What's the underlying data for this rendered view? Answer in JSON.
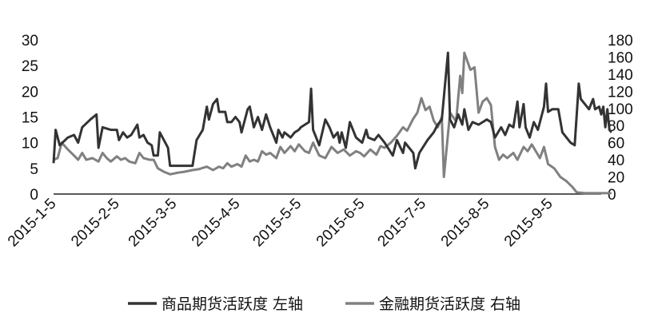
{
  "chart_data": {
    "type": "line",
    "title": "",
    "xlabel": "",
    "ylabel": "",
    "x_tick_labels": [
      "2015-1-5",
      "2015-2-5",
      "2015-3-5",
      "2015-4-5",
      "2015-5-5",
      "2015-6-5",
      "2015-7-5",
      "2015-8-5",
      "2015-9-5"
    ],
    "x_range": [
      "2015-01-05",
      "2015-09-30"
    ],
    "y_left": {
      "range": [
        0,
        30
      ],
      "ticks": [
        "0",
        "5",
        "10",
        "15",
        "20",
        "25",
        "30"
      ]
    },
    "y_right": {
      "range": [
        0,
        180
      ],
      "ticks": [
        "0",
        "20",
        "40",
        "60",
        "80",
        "100",
        "120",
        "140",
        "160",
        "180"
      ]
    },
    "grid": false,
    "legend_position": "bottom",
    "series": [
      {
        "name": "商品期货活跃度 左轴",
        "axis": "left",
        "color": "#333333",
        "points": [
          [
            "2015-01-05",
            6.0
          ],
          [
            "2015-01-06",
            12.5
          ],
          [
            "2015-01-08",
            9.5
          ],
          [
            "2015-01-12",
            11.0
          ],
          [
            "2015-01-15",
            11.5
          ],
          [
            "2015-01-17",
            10.0
          ],
          [
            "2015-01-19",
            13.0
          ],
          [
            "2015-01-23",
            14.5
          ],
          [
            "2015-01-26",
            15.5
          ],
          [
            "2015-01-27",
            9.0
          ],
          [
            "2015-01-29",
            13.0
          ],
          [
            "2015-02-02",
            12.5
          ],
          [
            "2015-02-05",
            12.5
          ],
          [
            "2015-02-06",
            10.5
          ],
          [
            "2015-02-08",
            12.0
          ],
          [
            "2015-02-10",
            11.0
          ],
          [
            "2015-02-12",
            11.5
          ],
          [
            "2015-02-15",
            13.5
          ],
          [
            "2015-02-16",
            11.0
          ],
          [
            "2015-02-18",
            11.5
          ],
          [
            "2015-02-20",
            10.0
          ],
          [
            "2015-02-22",
            9.5
          ],
          [
            "2015-02-23",
            7.5
          ],
          [
            "2015-02-25",
            7.5
          ],
          [
            "2015-02-26",
            12.0
          ],
          [
            "2015-02-28",
            10.5
          ],
          [
            "2015-03-02",
            9.0
          ],
          [
            "2015-03-03",
            5.5
          ],
          [
            "2015-03-05",
            5.5
          ],
          [
            "2015-03-10",
            5.5
          ],
          [
            "2015-03-14",
            5.5
          ],
          [
            "2015-03-16",
            10.5
          ],
          [
            "2015-03-19",
            12.5
          ],
          [
            "2015-03-21",
            17.0
          ],
          [
            "2015-03-22",
            14.5
          ],
          [
            "2015-03-24",
            17.5
          ],
          [
            "2015-03-26",
            18.5
          ],
          [
            "2015-03-27",
            16.0
          ],
          [
            "2015-03-30",
            16.0
          ],
          [
            "2015-03-31",
            14.0
          ],
          [
            "2015-04-02",
            14.0
          ],
          [
            "2015-04-04",
            15.0
          ],
          [
            "2015-04-06",
            14.0
          ],
          [
            "2015-04-07",
            12.0
          ],
          [
            "2015-04-10",
            16.5
          ],
          [
            "2015-04-11",
            17.0
          ],
          [
            "2015-04-13",
            13.0
          ],
          [
            "2015-04-15",
            15.0
          ],
          [
            "2015-04-17",
            12.5
          ],
          [
            "2015-04-19",
            15.5
          ],
          [
            "2015-04-21",
            13.0
          ],
          [
            "2015-04-24",
            10.0
          ],
          [
            "2015-04-25",
            12.5
          ],
          [
            "2015-04-27",
            11.0
          ],
          [
            "2015-04-28",
            12.0
          ],
          [
            "2015-05-01",
            11.0
          ],
          [
            "2015-05-03",
            12.0
          ],
          [
            "2015-05-05",
            12.5
          ],
          [
            "2015-05-06",
            13.0
          ],
          [
            "2015-05-10",
            14.0
          ],
          [
            "2015-05-11",
            20.5
          ],
          [
            "2015-05-12",
            12.5
          ],
          [
            "2015-05-15",
            9.5
          ],
          [
            "2015-05-18",
            14.5
          ],
          [
            "2015-05-20",
            13.0
          ],
          [
            "2015-05-22",
            11.0
          ],
          [
            "2015-05-24",
            12.0
          ],
          [
            "2015-05-25",
            10.0
          ],
          [
            "2015-05-26",
            12.0
          ],
          [
            "2015-05-28",
            9.0
          ],
          [
            "2015-05-30",
            14.0
          ],
          [
            "2015-06-02",
            11.0
          ],
          [
            "2015-06-05",
            10.0
          ],
          [
            "2015-06-07",
            12.5
          ],
          [
            "2015-06-08",
            11.0
          ],
          [
            "2015-06-11",
            10.5
          ],
          [
            "2015-06-13",
            11.5
          ],
          [
            "2015-06-16",
            10.0
          ],
          [
            "2015-06-20",
            7.5
          ],
          [
            "2015-06-22",
            10.5
          ],
          [
            "2015-06-25",
            8.0
          ],
          [
            "2015-06-26",
            10.0
          ],
          [
            "2015-06-30",
            8.0
          ],
          [
            "2015-07-01",
            5.0
          ],
          [
            "2015-07-03",
            8.0
          ],
          [
            "2015-07-07",
            10.5
          ],
          [
            "2015-07-10",
            12.0
          ],
          [
            "2015-07-12",
            13.5
          ],
          [
            "2015-07-14",
            14.5
          ],
          [
            "2015-07-17",
            27.5
          ],
          [
            "2015-07-18",
            14.5
          ],
          [
            "2015-07-20",
            13.0
          ],
          [
            "2015-07-22",
            15.5
          ],
          [
            "2015-07-24",
            13.5
          ],
          [
            "2015-07-25",
            16.5
          ],
          [
            "2015-07-27",
            12.5
          ],
          [
            "2015-07-29",
            14.0
          ],
          [
            "2015-08-01",
            13.5
          ],
          [
            "2015-08-03",
            14.0
          ],
          [
            "2015-08-05",
            14.5
          ],
          [
            "2015-08-07",
            14.0
          ],
          [
            "2015-08-09",
            11.0
          ],
          [
            "2015-08-12",
            13.0
          ],
          [
            "2015-08-14",
            11.5
          ],
          [
            "2015-08-16",
            13.5
          ],
          [
            "2015-08-18",
            13.0
          ],
          [
            "2015-08-20",
            18.0
          ],
          [
            "2015-08-21",
            13.0
          ],
          [
            "2015-08-23",
            17.5
          ],
          [
            "2015-08-24",
            13.0
          ],
          [
            "2015-08-26",
            11.0
          ],
          [
            "2015-08-28",
            14.0
          ],
          [
            "2015-08-30",
            12.5
          ],
          [
            "2015-09-02",
            17.0
          ],
          [
            "2015-09-03",
            21.5
          ],
          [
            "2015-09-04",
            16.0
          ],
          [
            "2015-09-06",
            16.5
          ],
          [
            "2015-09-09",
            16.5
          ],
          [
            "2015-09-11",
            12.0
          ],
          [
            "2015-09-15",
            10.0
          ],
          [
            "2015-09-17",
            9.5
          ],
          [
            "2015-09-19",
            21.5
          ],
          [
            "2015-09-20",
            18.5
          ],
          [
            "2015-09-22",
            17.5
          ],
          [
            "2015-09-24",
            16.5
          ],
          [
            "2015-09-26",
            18.5
          ],
          [
            "2015-09-27",
            16.5
          ],
          [
            "2015-09-29",
            17.0
          ],
          [
            "2015-09-30",
            15.5
          ],
          [
            "2015-10-01",
            17.0
          ],
          [
            "2015-10-02",
            13.0
          ],
          [
            "2015-10-03",
            16.5
          ],
          [
            "2015-10-04",
            12.5
          ],
          [
            "2015-10-05",
            12.0
          ]
        ]
      },
      {
        "name": "金融期货活跃度 右轴",
        "axis": "right",
        "color": "#808080",
        "points": [
          [
            "2015-01-05",
            40
          ],
          [
            "2015-01-07",
            42
          ],
          [
            "2015-01-09",
            60
          ],
          [
            "2015-01-12",
            52
          ],
          [
            "2015-01-15",
            45
          ],
          [
            "2015-01-17",
            40
          ],
          [
            "2015-01-19",
            48
          ],
          [
            "2015-01-21",
            40
          ],
          [
            "2015-01-24",
            42
          ],
          [
            "2015-01-27",
            38
          ],
          [
            "2015-01-29",
            48
          ],
          [
            "2015-01-31",
            42
          ],
          [
            "2015-02-02",
            38
          ],
          [
            "2015-02-05",
            44
          ],
          [
            "2015-02-07",
            40
          ],
          [
            "2015-02-09",
            42
          ],
          [
            "2015-02-11",
            38
          ],
          [
            "2015-02-14",
            36
          ],
          [
            "2015-02-16",
            48
          ],
          [
            "2015-02-18",
            42
          ],
          [
            "2015-02-21",
            40
          ],
          [
            "2015-02-23",
            40
          ],
          [
            "2015-02-25",
            30
          ],
          [
            "2015-02-28",
            26
          ],
          [
            "2015-03-03",
            23
          ],
          [
            "2015-03-07",
            25
          ],
          [
            "2015-03-10",
            26
          ],
          [
            "2015-03-14",
            28
          ],
          [
            "2015-03-17",
            29
          ],
          [
            "2015-03-21",
            32
          ],
          [
            "2015-03-24",
            28
          ],
          [
            "2015-03-27",
            32
          ],
          [
            "2015-03-29",
            30
          ],
          [
            "2015-03-31",
            36
          ],
          [
            "2015-04-02",
            32
          ],
          [
            "2015-04-05",
            35
          ],
          [
            "2015-04-07",
            32
          ],
          [
            "2015-04-09",
            45
          ],
          [
            "2015-04-11",
            38
          ],
          [
            "2015-04-13",
            40
          ],
          [
            "2015-04-15",
            38
          ],
          [
            "2015-04-17",
            50
          ],
          [
            "2015-04-19",
            46
          ],
          [
            "2015-04-21",
            48
          ],
          [
            "2015-04-24",
            42
          ],
          [
            "2015-04-26",
            55
          ],
          [
            "2015-04-28",
            48
          ],
          [
            "2015-05-01",
            56
          ],
          [
            "2015-05-03",
            50
          ],
          [
            "2015-05-05",
            58
          ],
          [
            "2015-05-08",
            50
          ],
          [
            "2015-05-10",
            48
          ],
          [
            "2015-05-12",
            60
          ],
          [
            "2015-05-15",
            45
          ],
          [
            "2015-05-18",
            42
          ],
          [
            "2015-05-21",
            55
          ],
          [
            "2015-05-24",
            48
          ],
          [
            "2015-05-27",
            52
          ],
          [
            "2015-05-30",
            45
          ],
          [
            "2015-06-02",
            50
          ],
          [
            "2015-06-04",
            48
          ],
          [
            "2015-06-06",
            44
          ],
          [
            "2015-06-09",
            52
          ],
          [
            "2015-06-12",
            46
          ],
          [
            "2015-06-14",
            56
          ],
          [
            "2015-06-16",
            54
          ],
          [
            "2015-06-19",
            60
          ],
          [
            "2015-06-22",
            68
          ],
          [
            "2015-06-25",
            78
          ],
          [
            "2015-06-27",
            74
          ],
          [
            "2015-06-30",
            88
          ],
          [
            "2015-07-02",
            95
          ],
          [
            "2015-07-04",
            112
          ],
          [
            "2015-07-06",
            98
          ],
          [
            "2015-07-08",
            102
          ],
          [
            "2015-07-10",
            86
          ],
          [
            "2015-07-12",
            78
          ],
          [
            "2015-07-14",
            90
          ],
          [
            "2015-07-15",
            20
          ],
          [
            "2015-07-18",
            95
          ],
          [
            "2015-07-21",
            85
          ],
          [
            "2015-07-23",
            138
          ],
          [
            "2015-07-24",
            118
          ],
          [
            "2015-07-25",
            165
          ],
          [
            "2015-07-28",
            145
          ],
          [
            "2015-07-30",
            148
          ],
          [
            "2015-08-01",
            95
          ],
          [
            "2015-08-03",
            108
          ],
          [
            "2015-08-05",
            112
          ],
          [
            "2015-08-07",
            104
          ],
          [
            "2015-08-09",
            55
          ],
          [
            "2015-08-11",
            40
          ],
          [
            "2015-08-13",
            46
          ],
          [
            "2015-08-15",
            42
          ],
          [
            "2015-08-18",
            48
          ],
          [
            "2015-08-20",
            40
          ],
          [
            "2015-08-23",
            55
          ],
          [
            "2015-08-25",
            50
          ],
          [
            "2015-08-27",
            58
          ],
          [
            "2015-08-29",
            50
          ],
          [
            "2015-08-31",
            42
          ],
          [
            "2015-09-02",
            55
          ],
          [
            "2015-09-04",
            35
          ],
          [
            "2015-09-07",
            30
          ],
          [
            "2015-09-10",
            20
          ],
          [
            "2015-09-13",
            15
          ],
          [
            "2015-09-16",
            8
          ],
          [
            "2015-09-18",
            2
          ],
          [
            "2015-09-22",
            1
          ],
          [
            "2015-09-26",
            1
          ],
          [
            "2015-09-30",
            1
          ],
          [
            "2015-10-05",
            1
          ]
        ]
      }
    ]
  }
}
